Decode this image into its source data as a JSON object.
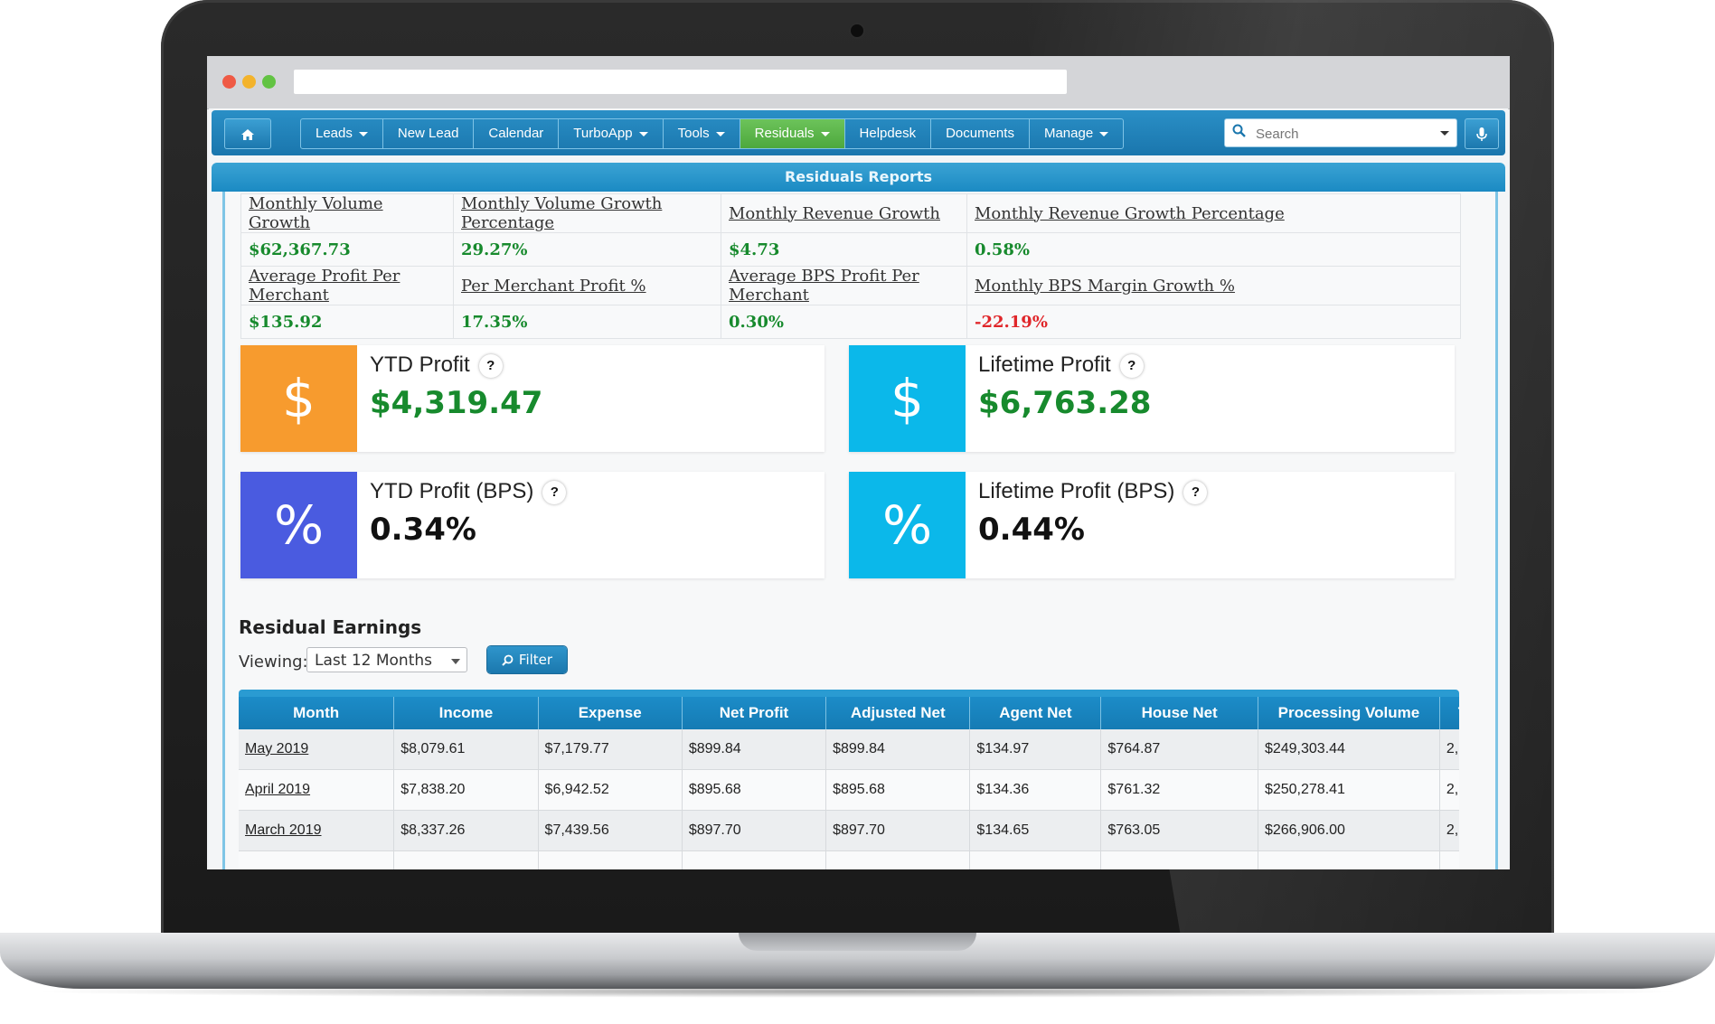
{
  "nav": {
    "home_icon": "home-icon",
    "items": [
      {
        "label": "Leads",
        "dropdown": true
      },
      {
        "label": "New Lead",
        "dropdown": false
      },
      {
        "label": "Calendar",
        "dropdown": false
      },
      {
        "label": "TurboApp",
        "dropdown": true
      },
      {
        "label": "Tools",
        "dropdown": true
      },
      {
        "label": "Residuals",
        "dropdown": true,
        "active": true
      },
      {
        "label": "Helpdesk",
        "dropdown": false
      },
      {
        "label": "Documents",
        "dropdown": false
      },
      {
        "label": "Manage",
        "dropdown": true
      }
    ],
    "search_placeholder": "Search"
  },
  "panel": {
    "title": "Residuals Reports"
  },
  "stats": [
    {
      "label": "Monthly Volume Growth",
      "value": "$62,367.73"
    },
    {
      "label": "Monthly Volume Growth Percentage",
      "value": "29.27%"
    },
    {
      "label": "Monthly Revenue Growth",
      "value": "$4.73"
    },
    {
      "label": "Monthly Revenue Growth Percentage",
      "value": "0.58%"
    },
    {
      "label": "Average Profit Per Merchant",
      "value": "$135.92"
    },
    {
      "label": "Per Merchant Profit %",
      "value": "17.35%"
    },
    {
      "label": "Average BPS Profit Per Merchant",
      "value": "0.30%"
    },
    {
      "label": "Monthly BPS Margin Growth %",
      "value": "-22.19%"
    }
  ],
  "cards": [
    {
      "title": "YTD Profit",
      "value": "$4,319.47",
      "icon": "$",
      "color": "#f79b2e"
    },
    {
      "title": "Lifetime Profit",
      "value": "$6,763.28",
      "icon": "$",
      "color": "#0bb8ea"
    },
    {
      "title": "YTD Profit (BPS)",
      "value": "0.34%",
      "icon": "%",
      "color": "#4a5be0"
    },
    {
      "title": "Lifetime Profit (BPS)",
      "value": "0.44%",
      "icon": "%",
      "color": "#0bb8ea"
    }
  ],
  "help_label": "?",
  "earnings": {
    "title": "Residual Earnings",
    "viewing_label": "Viewing:",
    "viewing_value": "Last 12 Months",
    "filter_label": "Filter",
    "columns": [
      "Month",
      "Income",
      "Expense",
      "Net Profit",
      "Adjusted Net",
      "Agent Net",
      "House Net",
      "Processing Volume",
      "T"
    ],
    "rows": [
      [
        "May 2019",
        "$8,079.61",
        "$7,179.77",
        "$899.84",
        "$899.84",
        "$134.97",
        "$764.87",
        "$249,303.44",
        "2,"
      ],
      [
        "April 2019",
        "$7,838.20",
        "$6,942.52",
        "$895.68",
        "$895.68",
        "$134.36",
        "$761.32",
        "$250,278.41",
        "2,"
      ],
      [
        "March 2019",
        "$8,337.26",
        "$7,439.56",
        "$897.70",
        "$897.70",
        "$134.65",
        "$763.05",
        "$266,906.00",
        "2,"
      ],
      [
        "",
        "",
        "",
        "",
        "",
        "",
        "",
        "",
        ""
      ]
    ]
  }
}
